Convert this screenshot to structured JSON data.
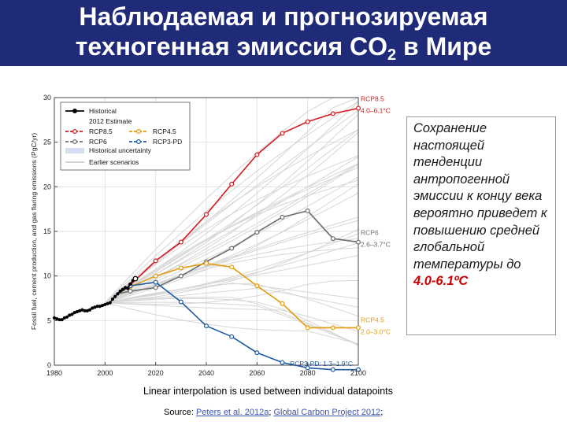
{
  "slide": {
    "title_line1": "Наблюдаемая и прогнозируемая",
    "title_line2_main": "техногенная эмиссия CO",
    "title_line2_sub": "2",
    "title_line2_end": " в Мире",
    "note_text": "Сохранение настоящей тенденции антропогенной эмиссии к концу века вероятно приведет к повышению средней глобальной температуры до",
    "note_highlight": "4.0-6.1ºC",
    "interp_note": "Linear interpolation is used between individual datapoints",
    "source_prefix": "Source: ",
    "source_link1": "Peters et al. 2012a",
    "source_sep": "; ",
    "source_link2": "Global Carbon Project 2012",
    "source_end": ";",
    "title_bg_color": "#1f2a78"
  },
  "chart_data": {
    "type": "line",
    "ylabel": "Fossil fuel, cement production, and gas flaring emissions (PgC/yr)",
    "xlim": [
      1980,
      2100
    ],
    "ylim": [
      0,
      30
    ],
    "xticks": [
      "1980",
      "2000",
      "2020",
      "2040",
      "2060",
      "2080",
      "2100"
    ],
    "yticks": [
      "0",
      "5",
      "10",
      "15",
      "20",
      "25",
      "30"
    ],
    "grid": true,
    "legend_position": "top-left",
    "legend": {
      "historical": "Historical",
      "estimate": "2012 Estimate",
      "rcp85": "RCP8.5",
      "rcp45": "RCP4.5",
      "rcp6": "RCP6",
      "rcp3pd": "RCP3-PD",
      "uncertainty": "Historical uncertainty",
      "earlier": "Earlier scenarios"
    },
    "end_labels": {
      "rcp85_name": "RCP8.5",
      "rcp85_range": "4.0–6.1°C",
      "rcp6_name": "RCP6",
      "rcp6_range": "2.6–3.7°C",
      "rcp45_name": "RCP4.5",
      "rcp45_range": "2.0–3.0°C",
      "rcp3pd_label": "RCP3-PD: 1.3–1.9°C"
    },
    "colors": {
      "historical": "#000000",
      "rcp85": "#d7191c",
      "rcp6": "#6d6d6d",
      "rcp45": "#e69a0b",
      "rcp3pd": "#1f5aa6",
      "earlier": "#d6d6d6"
    },
    "historical": {
      "x": [
        1980,
        1981,
        1982,
        1983,
        1984,
        1985,
        1986,
        1987,
        1988,
        1989,
        1990,
        1991,
        1992,
        1993,
        1994,
        1995,
        1996,
        1997,
        1998,
        1999,
        2000,
        2001,
        2002,
        2003,
        2004,
        2005,
        2006,
        2007,
        2008,
        2009,
        2010,
        2011
      ],
      "y": [
        5.3,
        5.2,
        5.1,
        5.1,
        5.3,
        5.4,
        5.6,
        5.7,
        5.9,
        6.0,
        6.1,
        6.2,
        6.1,
        6.1,
        6.2,
        6.4,
        6.5,
        6.6,
        6.6,
        6.7,
        6.8,
        6.9,
        7.0,
        7.4,
        7.7,
        8.0,
        8.3,
        8.5,
        8.7,
        8.6,
        9.1,
        9.5
      ]
    },
    "estimate": {
      "x": [
        2012
      ],
      "y": [
        9.7
      ]
    },
    "series": [
      {
        "key": "rcp85",
        "name": "RCP8.5",
        "x": [
          2005,
          2010,
          2020,
          2030,
          2040,
          2050,
          2060,
          2070,
          2080,
          2090,
          2100
        ],
        "y": [
          8.0,
          9.0,
          11.7,
          13.8,
          16.9,
          20.3,
          23.6,
          26.0,
          27.3,
          28.2,
          28.8
        ]
      },
      {
        "key": "rcp6",
        "name": "RCP6",
        "x": [
          2005,
          2010,
          2020,
          2030,
          2040,
          2050,
          2060,
          2070,
          2080,
          2090,
          2100
        ],
        "y": [
          8.0,
          8.3,
          8.7,
          10.0,
          11.6,
          13.1,
          14.9,
          16.6,
          17.3,
          14.2,
          13.8
        ]
      },
      {
        "key": "rcp45",
        "name": "RCP4.5",
        "x": [
          2005,
          2010,
          2020,
          2030,
          2040,
          2050,
          2060,
          2070,
          2080,
          2090,
          2100
        ],
        "y": [
          8.0,
          8.8,
          10.0,
          10.9,
          11.4,
          11.0,
          8.9,
          6.9,
          4.2,
          4.2,
          4.2
        ]
      },
      {
        "key": "rcp3pd",
        "name": "RCP3-PD",
        "x": [
          2005,
          2010,
          2020,
          2030,
          2040,
          2050,
          2060,
          2070,
          2080,
          2090,
          2100
        ],
        "y": [
          8.0,
          8.9,
          9.3,
          7.1,
          4.4,
          3.2,
          1.4,
          0.3,
          -0.3,
          -0.5,
          -0.5
        ]
      }
    ]
  }
}
